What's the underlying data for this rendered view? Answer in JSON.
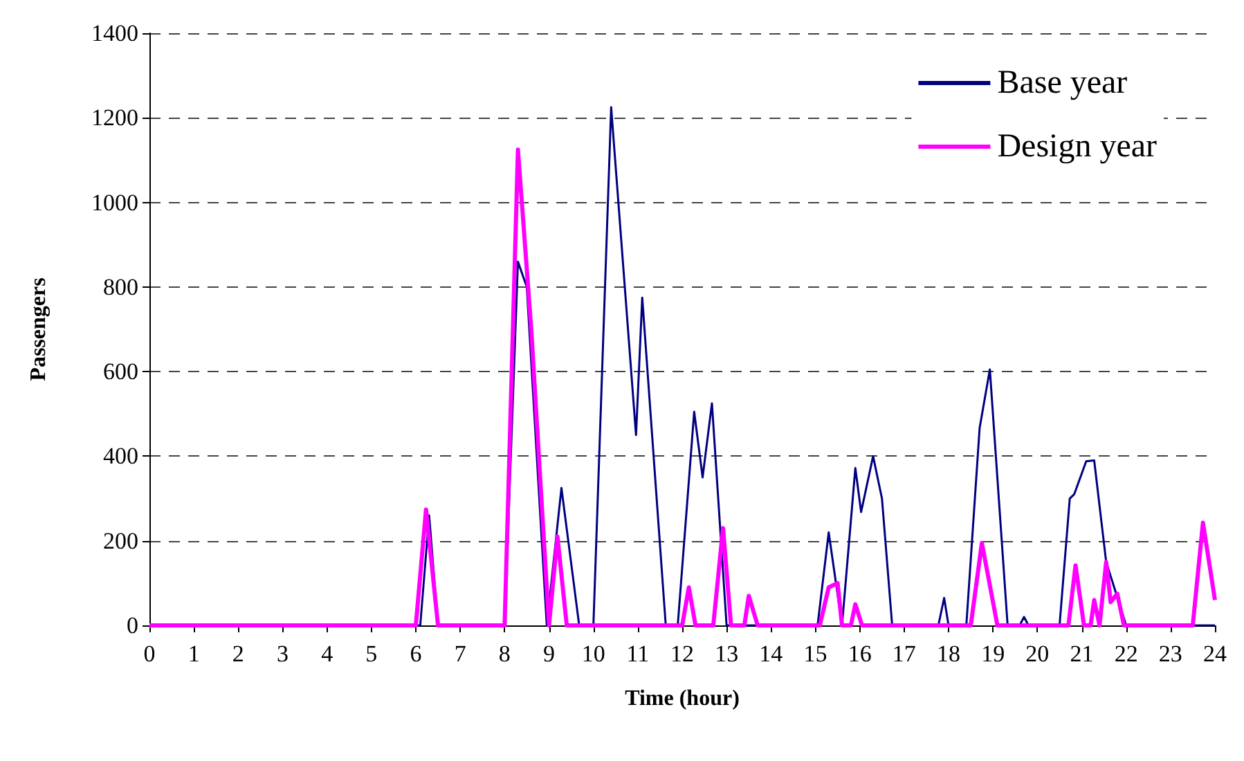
{
  "chart_data": {
    "type": "line",
    "xlabel": "Time (hour)",
    "ylabel": "Passengers",
    "xlim": [
      0,
      24
    ],
    "xticks": [
      0,
      1,
      2,
      3,
      4,
      5,
      6,
      7,
      8,
      9,
      10,
      11,
      12,
      13,
      14,
      15,
      16,
      17,
      18,
      19,
      20,
      21,
      22,
      23,
      24
    ],
    "ylim": [
      0,
      1400
    ],
    "yticks": [
      0,
      200,
      400,
      600,
      800,
      1000,
      1200,
      1400
    ],
    "grid": "y",
    "legend": "top right",
    "marker": "none",
    "line_style": "solid",
    "series": [
      {
        "name": "Base year",
        "color": "#000080",
        "x": [
          0,
          6.1,
          6.3,
          6.5,
          8.0,
          8.3,
          8.5,
          8.95,
          9.28,
          9.68,
          10.0,
          10.4,
          10.96,
          11.1,
          11.63,
          11.9,
          12.27,
          12.46,
          12.67,
          13.0,
          15.05,
          15.3,
          15.6,
          15.9,
          16.03,
          16.3,
          16.5,
          16.73,
          17.77,
          17.9,
          18.0,
          18.4,
          18.7,
          18.93,
          19.33,
          19.6,
          19.7,
          19.8,
          20.5,
          20.73,
          20.83,
          21.1,
          21.28,
          21.55,
          22.0,
          24
        ],
        "values": [
          0,
          0,
          260,
          0,
          0,
          860,
          800,
          0,
          325,
          0,
          0,
          1225,
          450,
          775,
          0,
          0,
          505,
          350,
          525,
          0,
          0,
          220,
          0,
          372,
          268,
          400,
          300,
          0,
          0,
          65,
          0,
          0,
          467,
          605,
          0,
          0,
          20,
          0,
          0,
          300,
          310,
          388,
          390,
          150,
          0,
          0
        ]
      },
      {
        "name": "Design year",
        "color": "#ff00ff",
        "x": [
          0,
          6.0,
          6.23,
          6.5,
          8.0,
          8.3,
          8.6,
          9.0,
          9.19,
          9.4,
          12.0,
          12.15,
          12.3,
          12.7,
          12.92,
          13.1,
          13.4,
          13.5,
          13.7,
          15.1,
          15.3,
          15.5,
          15.6,
          15.8,
          15.9,
          16.05,
          18.5,
          18.75,
          19.1,
          20.7,
          20.86,
          21.05,
          21.2,
          21.28,
          21.4,
          21.55,
          21.65,
          21.8,
          21.95,
          23.5,
          23.73,
          24
        ],
        "values": [
          0,
          0,
          274,
          0,
          0,
          1125,
          700,
          0,
          210,
          0,
          0,
          90,
          0,
          0,
          230,
          0,
          0,
          70,
          0,
          0,
          90,
          100,
          0,
          0,
          50,
          0,
          0,
          195,
          0,
          0,
          142,
          0,
          0,
          60,
          0,
          150,
          55,
          75,
          0,
          0,
          243,
          60
        ]
      }
    ]
  }
}
